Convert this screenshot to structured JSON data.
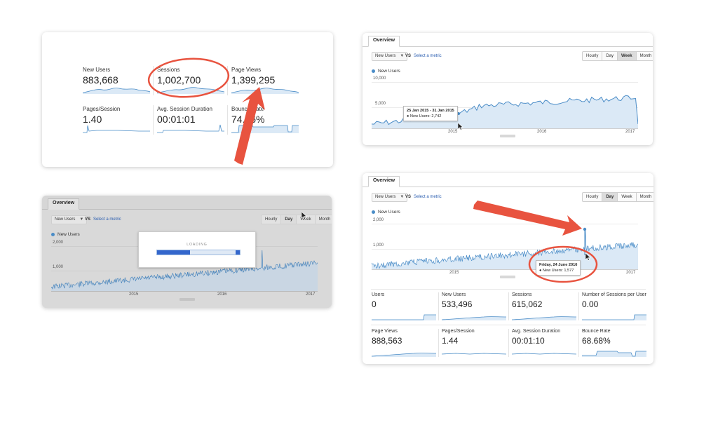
{
  "panel1": {
    "metrics": [
      {
        "label": "New Users",
        "value": "883,668"
      },
      {
        "label": "Sessions",
        "value": "1,002,700"
      },
      {
        "label": "Page Views",
        "value": "1,399,295"
      },
      {
        "label": "Pages/Session",
        "value": "1.40"
      },
      {
        "label": "Avg. Session Duration",
        "value": "00:01:01"
      },
      {
        "label": "Bounce Rate",
        "value": "74.16%"
      }
    ]
  },
  "panel2": {
    "tab": "Overview",
    "metric_select": "New Users",
    "vs": "VS",
    "select_metric": "Select a metric",
    "granularity": [
      "Hourly",
      "Day",
      "Week",
      "Month"
    ],
    "active_granularity": "Week",
    "legend": "New Users",
    "y_ticks": [
      "10,000",
      "5,000"
    ],
    "x_ticks": [
      "2015",
      "2016",
      "2017"
    ],
    "tooltip": {
      "title": "25 Jan 2015 - 31 Jan 2015",
      "line": "● New Users: 2,742"
    }
  },
  "panel3": {
    "tab": "Overview",
    "metric_select": "New Users",
    "vs": "VS",
    "select_metric": "Select a metric",
    "granularity": [
      "Hourly",
      "Day",
      "Week",
      "Month"
    ],
    "active_granularity": "Day",
    "legend": "New Users",
    "y_ticks": [
      "2,000",
      "1,000"
    ],
    "x_ticks": [
      "2015",
      "2016",
      "2017"
    ],
    "loading_text": "LOADING",
    "loading_progress": 0.4
  },
  "panel4": {
    "tab": "Overview",
    "metric_select": "New Users",
    "vs": "VS",
    "select_metric": "Select a metric",
    "granularity": [
      "Hourly",
      "Day",
      "Week",
      "Month"
    ],
    "active_granularity": "Day",
    "legend": "New Users",
    "y_ticks": [
      "2,000",
      "1,000"
    ],
    "x_ticks": [
      "2015",
      "2016",
      "2017"
    ],
    "tooltip": {
      "title": "Friday, 24 June 2016",
      "line": "● New Users: 1,577"
    },
    "metrics": [
      {
        "label": "Users",
        "value": "0"
      },
      {
        "label": "New Users",
        "value": "533,496"
      },
      {
        "label": "Sessions",
        "value": "615,062"
      },
      {
        "label": "Number of Sessions per User",
        "value": "0.00"
      },
      {
        "label": "Page Views",
        "value": "888,563"
      },
      {
        "label": "Pages/Session",
        "value": "1.44"
      },
      {
        "label": "Avg. Session Duration",
        "value": "00:01:10"
      },
      {
        "label": "Bounce Rate",
        "value": "68.68%"
      }
    ]
  },
  "colors": {
    "line": "#4a8cc7",
    "fill": "#dbe9f6",
    "annotation": "#e8533f"
  }
}
